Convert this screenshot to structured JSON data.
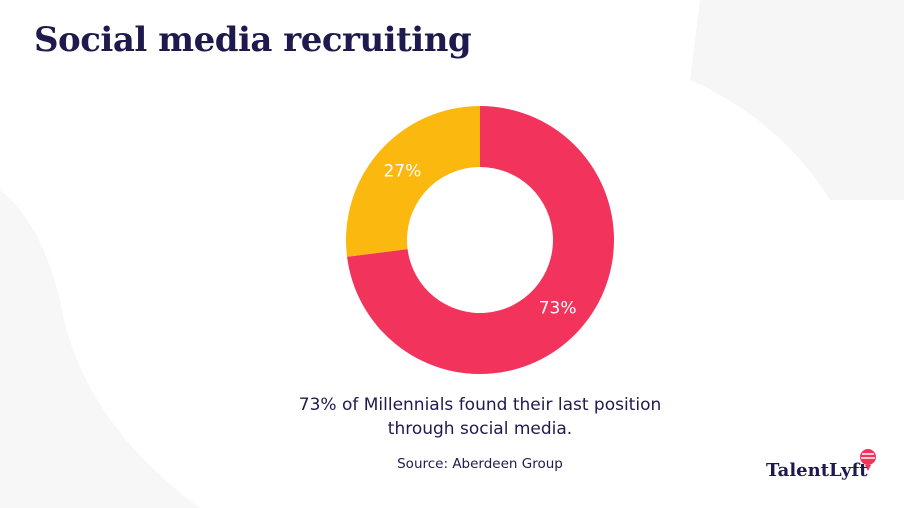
{
  "chart_data": {
    "type": "pie",
    "donut": true,
    "title": "Social media recruiting",
    "values": [
      73,
      27
    ],
    "value_labels": [
      "73%",
      "27%"
    ],
    "colors": [
      "#f2335c",
      "#fbb80f"
    ],
    "caption": "73% of Millennials found their last position through social media.",
    "source": "Source: Aberdeen Group",
    "brand": "TalentLyft"
  }
}
